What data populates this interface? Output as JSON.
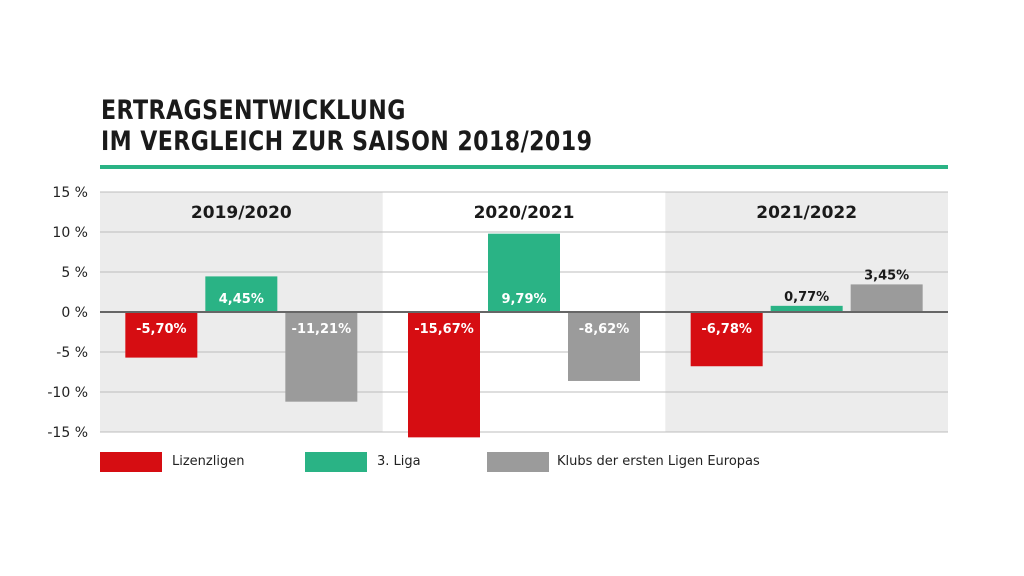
{
  "title_lines": [
    "ERTRAGSENTWICKLUNG",
    "IM VERGLEICH ZUR SAISON 2018/2019"
  ],
  "colors": {
    "lizenzligen": "#d60d12",
    "liga3": "#2ab385",
    "europa": "#9b9b9b",
    "accent_rule": "#2ab385",
    "panel_shade": "#ececec"
  },
  "chart_data": {
    "type": "bar",
    "title": "ERTRAGSENTWICKLUNG IM VERGLEICH ZUR SAISON 2018/2019",
    "categories": [
      "2019/2020",
      "2020/2021",
      "2021/2022"
    ],
    "series": [
      {
        "name": "Lizenzligen",
        "values": [
          -5.7,
          -15.67,
          -6.78
        ],
        "labels": [
          "-5,70%",
          "-15,67%",
          "-6,78%"
        ]
      },
      {
        "name": "3. Liga",
        "values": [
          4.45,
          9.79,
          0.77
        ],
        "labels": [
          "4,45%",
          "9,79%",
          "0,77%"
        ]
      },
      {
        "name": "Klubs der ersten Ligen Europas",
        "values": [
          -11.21,
          -8.62,
          3.45
        ],
        "labels": [
          "-11,21%",
          "-8,62%",
          "3,45%"
        ]
      }
    ],
    "ylim": [
      -15,
      15
    ],
    "yticks": [
      15,
      10,
      5,
      0,
      -5,
      -10,
      -15
    ],
    "ytick_labels": [
      "15 %",
      "10 %",
      "5 %",
      "0 %",
      "-5 %",
      "-10 %",
      "-15 %"
    ],
    "xlabel": "",
    "ylabel": "",
    "grid": true,
    "legend": "bottom"
  }
}
